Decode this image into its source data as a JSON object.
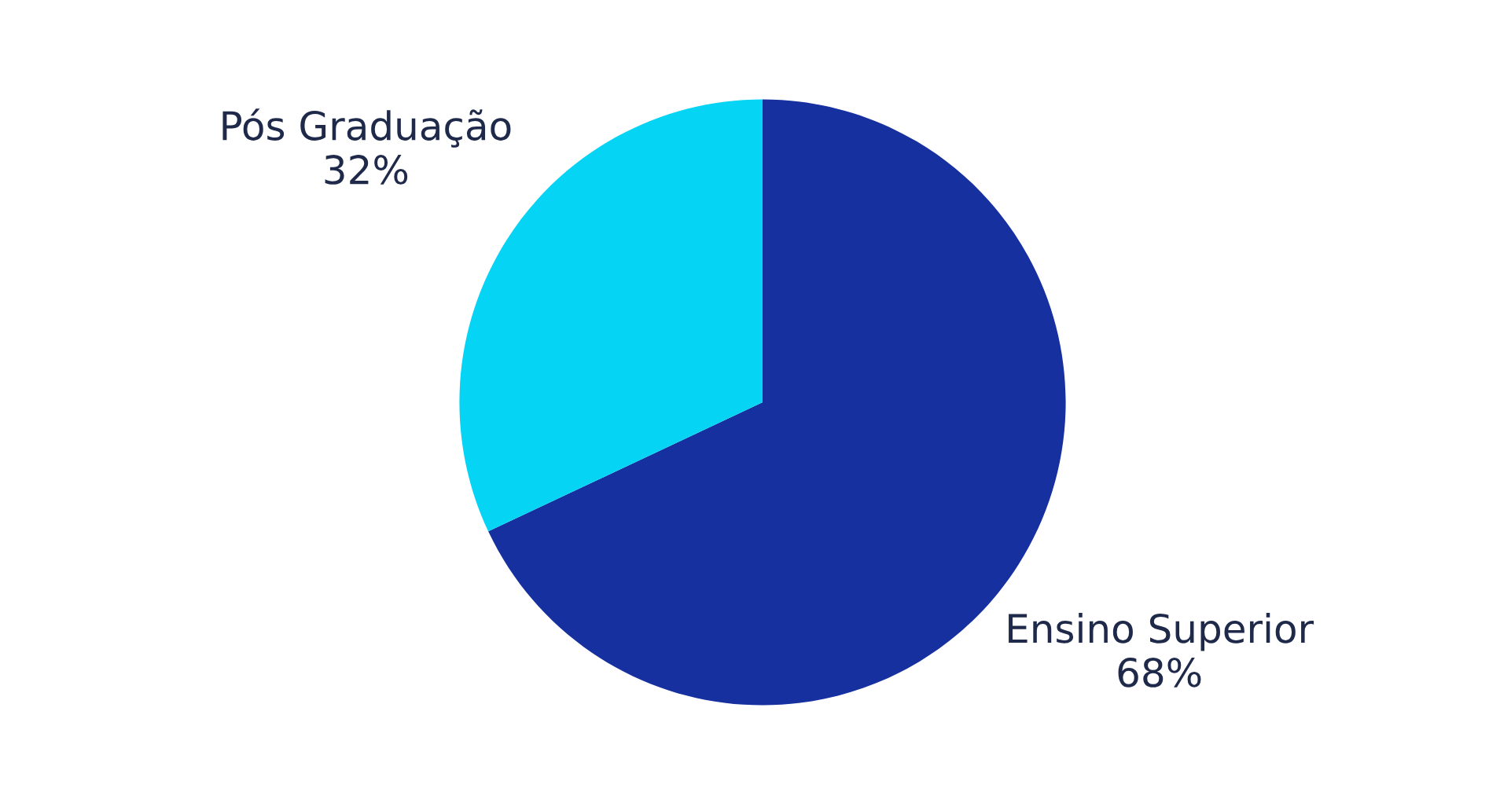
{
  "chart_data": {
    "type": "pie",
    "categories": [
      "Ensino Superior",
      "Pós Graduação"
    ],
    "values": [
      68,
      32
    ],
    "colors": [
      "#1730a0",
      "#05d4f4"
    ],
    "value_labels": [
      "68%",
      "32%"
    ],
    "legend": false
  }
}
